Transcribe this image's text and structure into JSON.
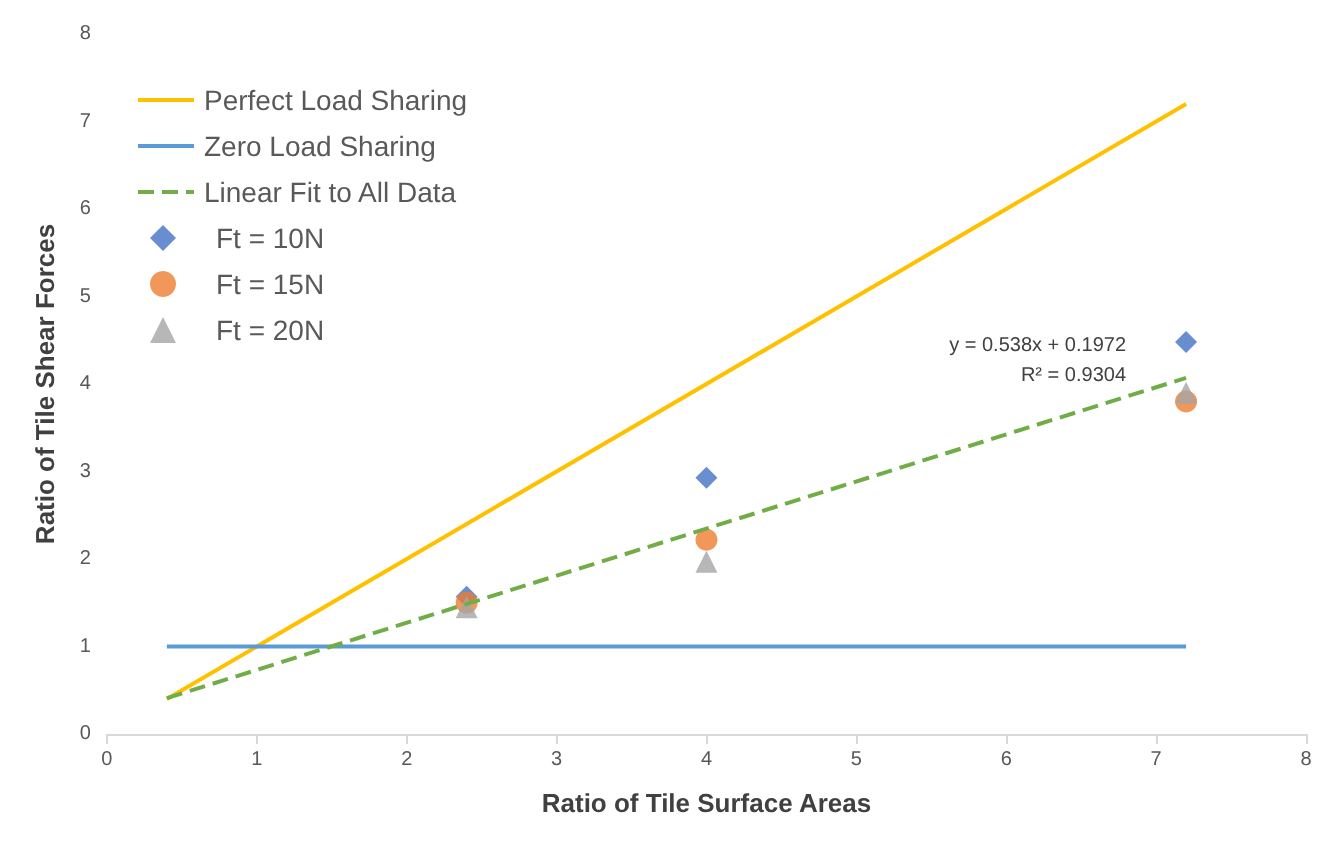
{
  "chart_data": {
    "type": "scatter",
    "xlabel": "Ratio of Tile Surface Areas",
    "ylabel": "Ratio of Tile Shear Forces",
    "xlim": [
      0,
      8
    ],
    "xticks": [
      0,
      1,
      2,
      3,
      4,
      5,
      6,
      7,
      8
    ],
    "ylim": [
      0,
      8
    ],
    "yticks": [
      0,
      1,
      2,
      3,
      4,
      5,
      6,
      7,
      8
    ],
    "grid": false,
    "legend": "top left",
    "annotations": [
      "y = 0.538x + 0.1972",
      "R² = 0.9304"
    ],
    "series": [
      {
        "name": "Perfect Load Sharing",
        "type": "line",
        "color": "#ffc000",
        "marker": "none",
        "line_style": "solid",
        "x": [
          0.4,
          7.2
        ],
        "values": [
          0.4,
          7.2
        ]
      },
      {
        "name": "Zero Load Sharing",
        "type": "line",
        "color": "#5b9bd5",
        "marker": "none",
        "line_style": "solid",
        "x": [
          0.4,
          7.2
        ],
        "values": [
          1,
          1
        ]
      },
      {
        "name": "Linear Fit to All Data",
        "type": "line",
        "color": "#70ad47",
        "marker": "none",
        "line_style": "dashed",
        "x": [
          0.4,
          7.2
        ],
        "values": [
          0.41,
          4.07
        ]
      },
      {
        "name": "Ft = 10N",
        "type": "scatter",
        "color": "#4472c4",
        "marker": "diamond",
        "x": [
          2.4,
          4,
          7.2
        ],
        "values": [
          1.57,
          2.93,
          4.48
        ]
      },
      {
        "name": "Ft = 15N",
        "type": "scatter",
        "color": "#ed7d31",
        "marker": "circle",
        "x": [
          2.4,
          4,
          7.2
        ],
        "values": [
          1.5,
          2.22,
          3.8
        ]
      },
      {
        "name": "Ft = 20N",
        "type": "scatter",
        "color": "#a5a5a5",
        "marker": "triangle",
        "x": [
          2.4,
          4,
          7.2
        ],
        "values": [
          1.45,
          1.97,
          3.9
        ]
      }
    ]
  }
}
